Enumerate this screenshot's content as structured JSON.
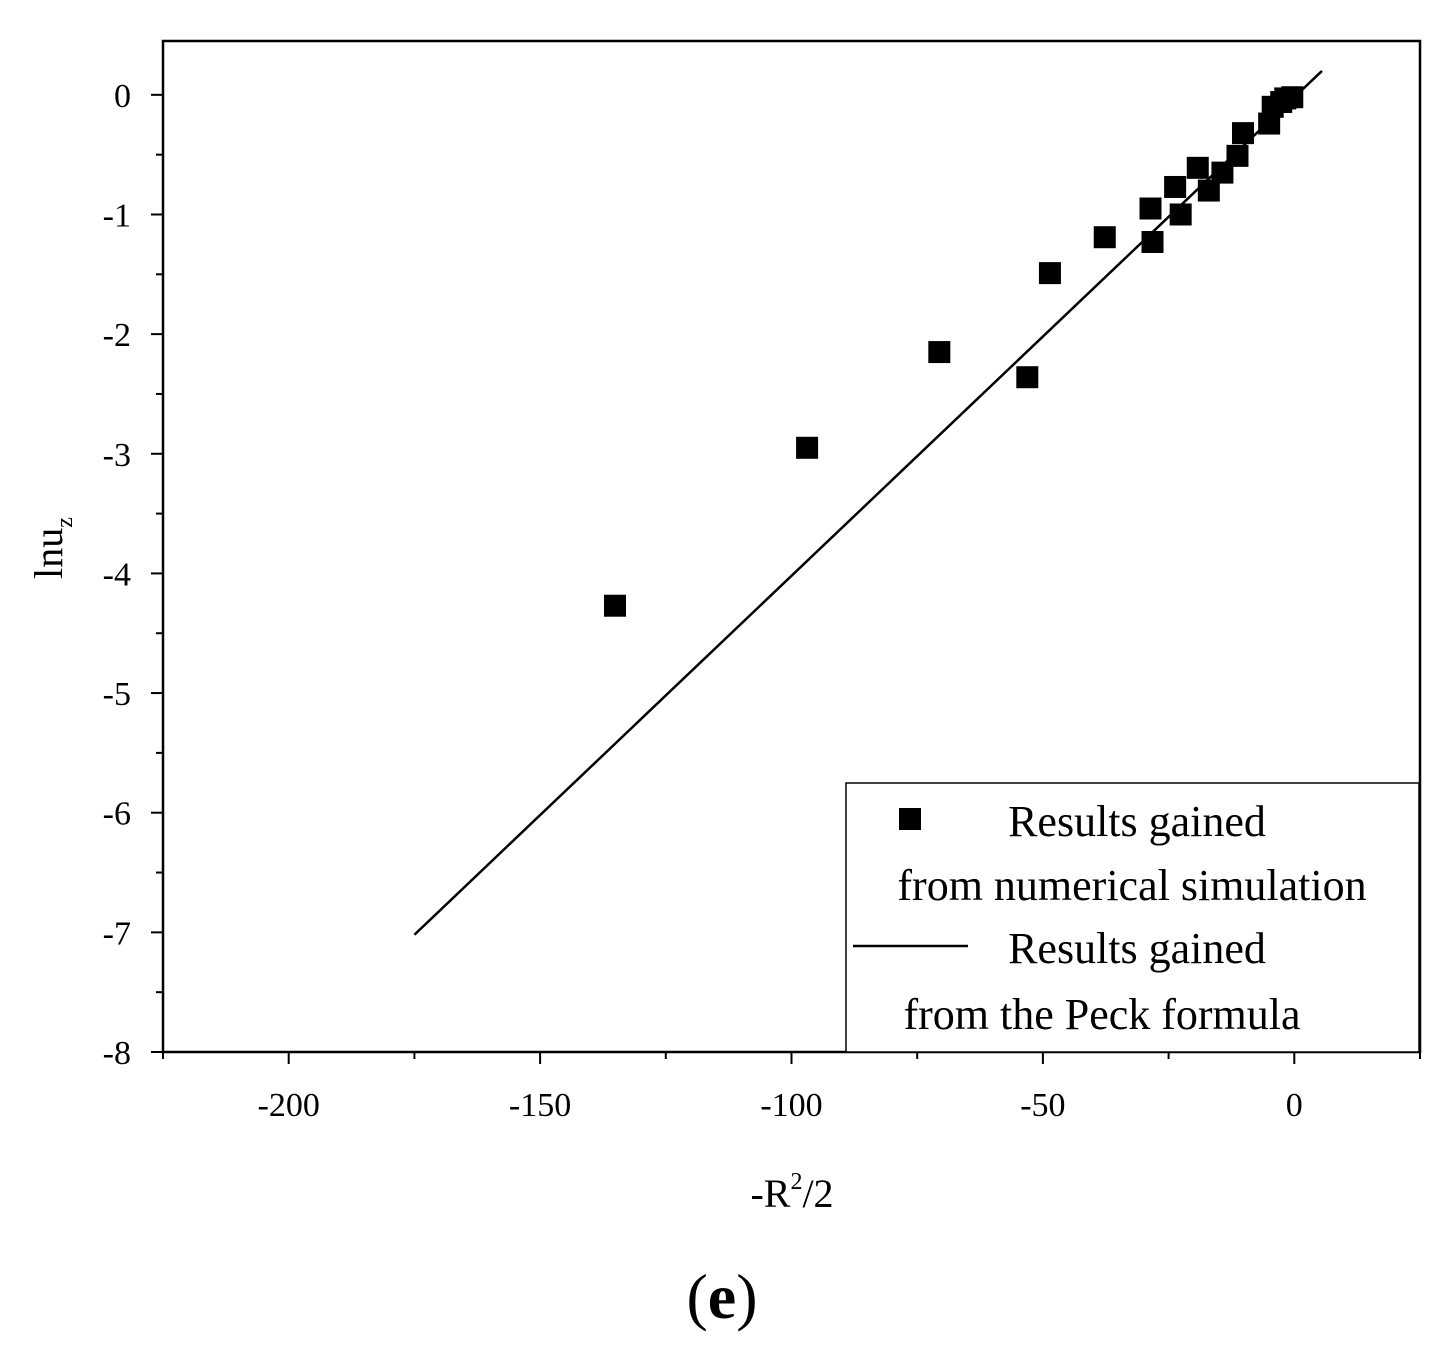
{
  "chart_data": {
    "type": "scatter",
    "panel_label": {
      "open": "(",
      "letter": "e",
      "close": ")"
    },
    "xlabel": {
      "base": "-R",
      "sup": "2",
      "rest": "/2"
    },
    "ylabel": {
      "base": "lnu",
      "sub": "z"
    },
    "xlim": [
      -225,
      25
    ],
    "ylim": [
      -8,
      0.45
    ],
    "xticks": [
      -200,
      -150,
      -100,
      -50,
      0
    ],
    "yticks": [
      0,
      -1,
      -2,
      -3,
      -4,
      -5,
      -6,
      -7,
      -8
    ],
    "xtick_labels": [
      "-200",
      "-150",
      "-100",
      "-50",
      "0"
    ],
    "ytick_labels": [
      "0",
      "-1",
      "-2",
      "-3",
      "-4",
      "-5",
      "-6",
      "-7",
      "-8"
    ],
    "series": [
      {
        "name": "Results gained from numerical simulation",
        "kind": "scatter",
        "marker": "square",
        "color": "#000000",
        "points": [
          {
            "x": -135.1,
            "y": -4.27
          },
          {
            "x": -96.9,
            "y": -2.95
          },
          {
            "x": -70.6,
            "y": -2.15
          },
          {
            "x": -53.1,
            "y": -2.36
          },
          {
            "x": -48.6,
            "y": -1.49
          },
          {
            "x": -37.7,
            "y": -1.19
          },
          {
            "x": -28.6,
            "y": -0.95
          },
          {
            "x": -28.2,
            "y": -1.23
          },
          {
            "x": -23.7,
            "y": -0.77
          },
          {
            "x": -22.6,
            "y": -1.0
          },
          {
            "x": -19.2,
            "y": -0.61
          },
          {
            "x": -17.0,
            "y": -0.8
          },
          {
            "x": -14.3,
            "y": -0.65
          },
          {
            "x": -11.3,
            "y": -0.51
          },
          {
            "x": -10.2,
            "y": -0.32
          },
          {
            "x": -5.0,
            "y": -0.24
          },
          {
            "x": -4.3,
            "y": -0.1
          },
          {
            "x": -2.6,
            "y": -0.06
          },
          {
            "x": -1.8,
            "y": -0.03
          },
          {
            "x": -0.4,
            "y": -0.02
          }
        ]
      },
      {
        "name": "Results gained from the Peck formula",
        "kind": "line",
        "color": "#000000",
        "points": [
          {
            "x": -175,
            "y": -7.02
          },
          {
            "x": 5.5,
            "y": 0.2
          }
        ]
      }
    ],
    "legend": {
      "position": "bottom-right",
      "entries": [
        {
          "line1": "Results gained",
          "line2": "from numerical simulation",
          "symbol": "square"
        },
        {
          "line1": "Results gained",
          "line2": "from the Peck formula",
          "symbol": "line"
        }
      ]
    }
  }
}
